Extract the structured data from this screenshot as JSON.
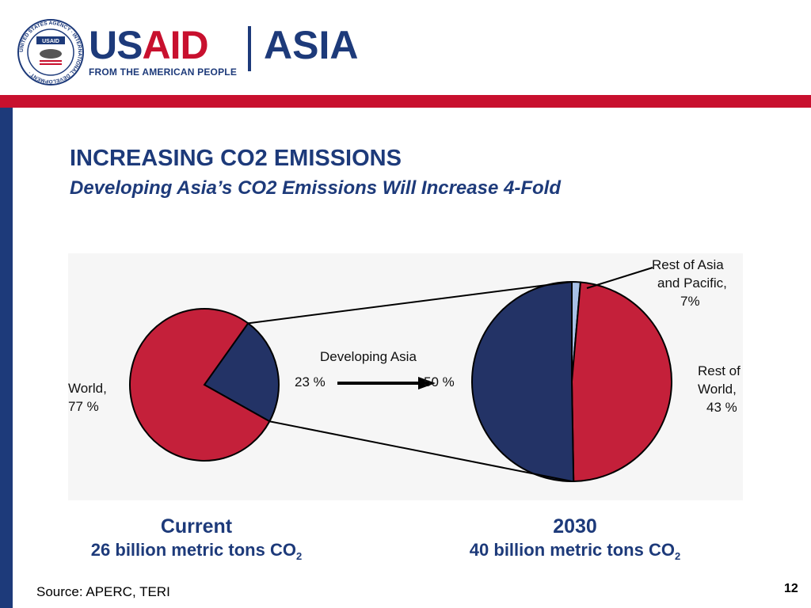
{
  "header": {
    "seal_text": "USAID",
    "seal_ring_text": "UNITED STATES AGENCY · INTERNATIONAL DEVELOPMENT ·",
    "brand_usa": "US",
    "brand_aid": "AID",
    "brand_region": "ASIA",
    "tagline": "FROM THE AMERICAN PEOPLE"
  },
  "slide": {
    "title": "INCREASING CO2 EMISSIONS",
    "subtitle": "Developing Asia’s CO2 Emissions Will Increase 4-Fold",
    "source": "Source: APERC, TERI",
    "page_number": "12"
  },
  "colors": {
    "brand_blue": "#1d3a7a",
    "brand_red": "#c8102e",
    "pie_red": "#c4203a",
    "pie_navy": "#233366",
    "pie_light_blue": "#a7c0e6"
  },
  "chart_data": [
    {
      "type": "pie",
      "caption_title": "Current",
      "caption_value": "26 billion metric tons CO",
      "caption_sub": "2",
      "slices": [
        {
          "label": "World, 77 %",
          "value": 77,
          "color": "#c4203a"
        },
        {
          "label": "",
          "value": 23,
          "color": "#233366"
        }
      ]
    },
    {
      "type": "pie",
      "caption_title": "2030",
      "caption_value": "40 billion metric tons CO",
      "caption_sub": "2",
      "slices": [
        {
          "label": "Rest of Asia and Pacific, 7%",
          "value": 7,
          "color": "#a7c0e6"
        },
        {
          "label": "Rest of World, 43 %",
          "value": 43,
          "color": "#c4203a"
        },
        {
          "label": "",
          "value": 50,
          "color": "#233366"
        }
      ]
    }
  ],
  "developing_asia": {
    "label": "Developing Asia",
    "from": "23 %",
    "to": "50 %"
  },
  "annotations": {
    "world_line1": "World,",
    "world_line2": "77 %",
    "rest_asia_line1": "Rest of Asia",
    "rest_asia_line2": "and Pacific,",
    "rest_asia_line3": "7%",
    "rest_world_line1": "Rest of",
    "rest_world_line2": "World,",
    "rest_world_line3": "43 %"
  }
}
